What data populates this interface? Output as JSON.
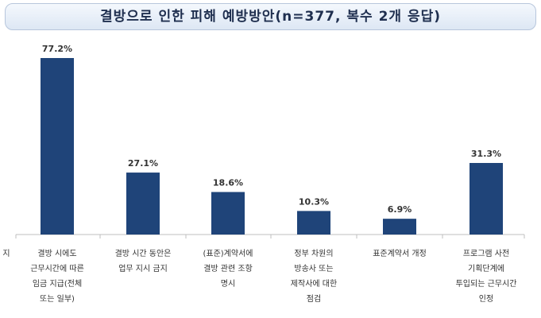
{
  "chart_data": {
    "type": "bar",
    "title": "결방으로 인한 피해 예방방안(n=377, 복수 2개 응답)",
    "categories": [
      "결방 시에도 근무시간에 따른 임금 지급(전체 또는 일부)",
      "결방 시간 동안은 업무 지시 금지",
      "(표준)계약서에 결방 관련 조항 명시",
      "정부 차원의 방송사 또는 제작사에 대한 점검",
      "표준계약서 개정",
      "프로그램 사전 기획단계에 투입되는 근무시간 인정"
    ],
    "category_lines": [
      [
        "결방 시에도",
        "근무시간에 따른",
        "임금 지급(전체",
        "또는 일부)"
      ],
      [
        "결방 시간 동안은",
        "업무 지시 금지"
      ],
      [
        "(표준)계약서에",
        "결방 관련 조항",
        "명시"
      ],
      [
        "정부 차원의",
        "방송사 또는",
        "제작사에 대한",
        "점검"
      ],
      [
        "표준계약서 개정"
      ],
      [
        "프로그램 사전",
        "기획단계에",
        "투입되는 근무시간",
        "인정"
      ]
    ],
    "values": [
      77.2,
      27.1,
      18.6,
      10.3,
      6.9,
      31.3
    ],
    "value_labels": [
      "77.2%",
      "27.1%",
      "18.6%",
      "10.3%",
      "6.9%",
      "31.3%"
    ],
    "ylim": [
      0,
      80
    ],
    "cut_off_label": "지",
    "bar_color": "#1f4479",
    "grid": false
  }
}
